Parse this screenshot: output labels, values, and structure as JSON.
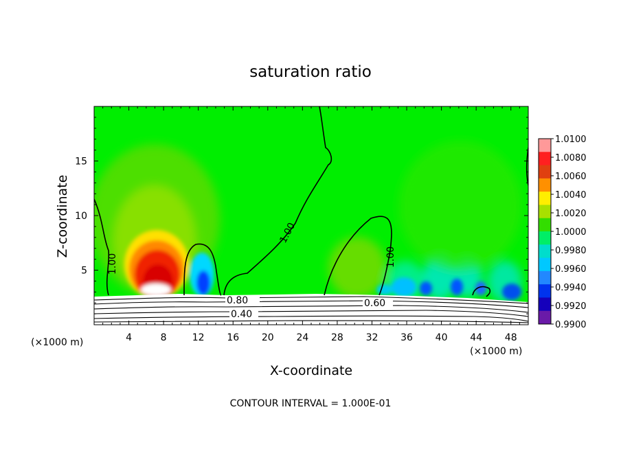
{
  "chart_data": {
    "type": "heatmap",
    "title": "saturation ratio",
    "xlabel": "X-coordinate",
    "ylabel": "Z-coordinate",
    "x_unit": "(×1000 m)",
    "x_unit_right": "(×1000 m)",
    "xlim": [
      0,
      50
    ],
    "ylim": [
      0,
      20
    ],
    "x_ticks": [
      "4",
      "8",
      "12",
      "16",
      "20",
      "24",
      "28",
      "32",
      "36",
      "40",
      "44",
      "48"
    ],
    "y_ticks": [
      "5",
      "10",
      "15"
    ],
    "colorbar": {
      "labels": [
        "1.0100",
        "1.0080",
        "1.0060",
        "1.0040",
        "1.0020",
        "1.0000",
        "0.9980",
        "0.9960",
        "0.9940",
        "0.9920",
        "0.9900"
      ],
      "colors": [
        "#ff9999",
        "#ff2020",
        "#e04010",
        "#ff9000",
        "#ffee00",
        "#a8e000",
        "#33dd00",
        "#00ee66",
        "#00ddcc",
        "#00c8ff",
        "#2288ff",
        "#0033ee",
        "#1500bb",
        "#6a1aa8"
      ]
    },
    "contour_labels": [
      "1.00",
      "1.00",
      "1.00",
      "0.80",
      "0.60",
      "0.40"
    ],
    "footer": "CONTOUR INTERVAL = 1.000E-01"
  }
}
